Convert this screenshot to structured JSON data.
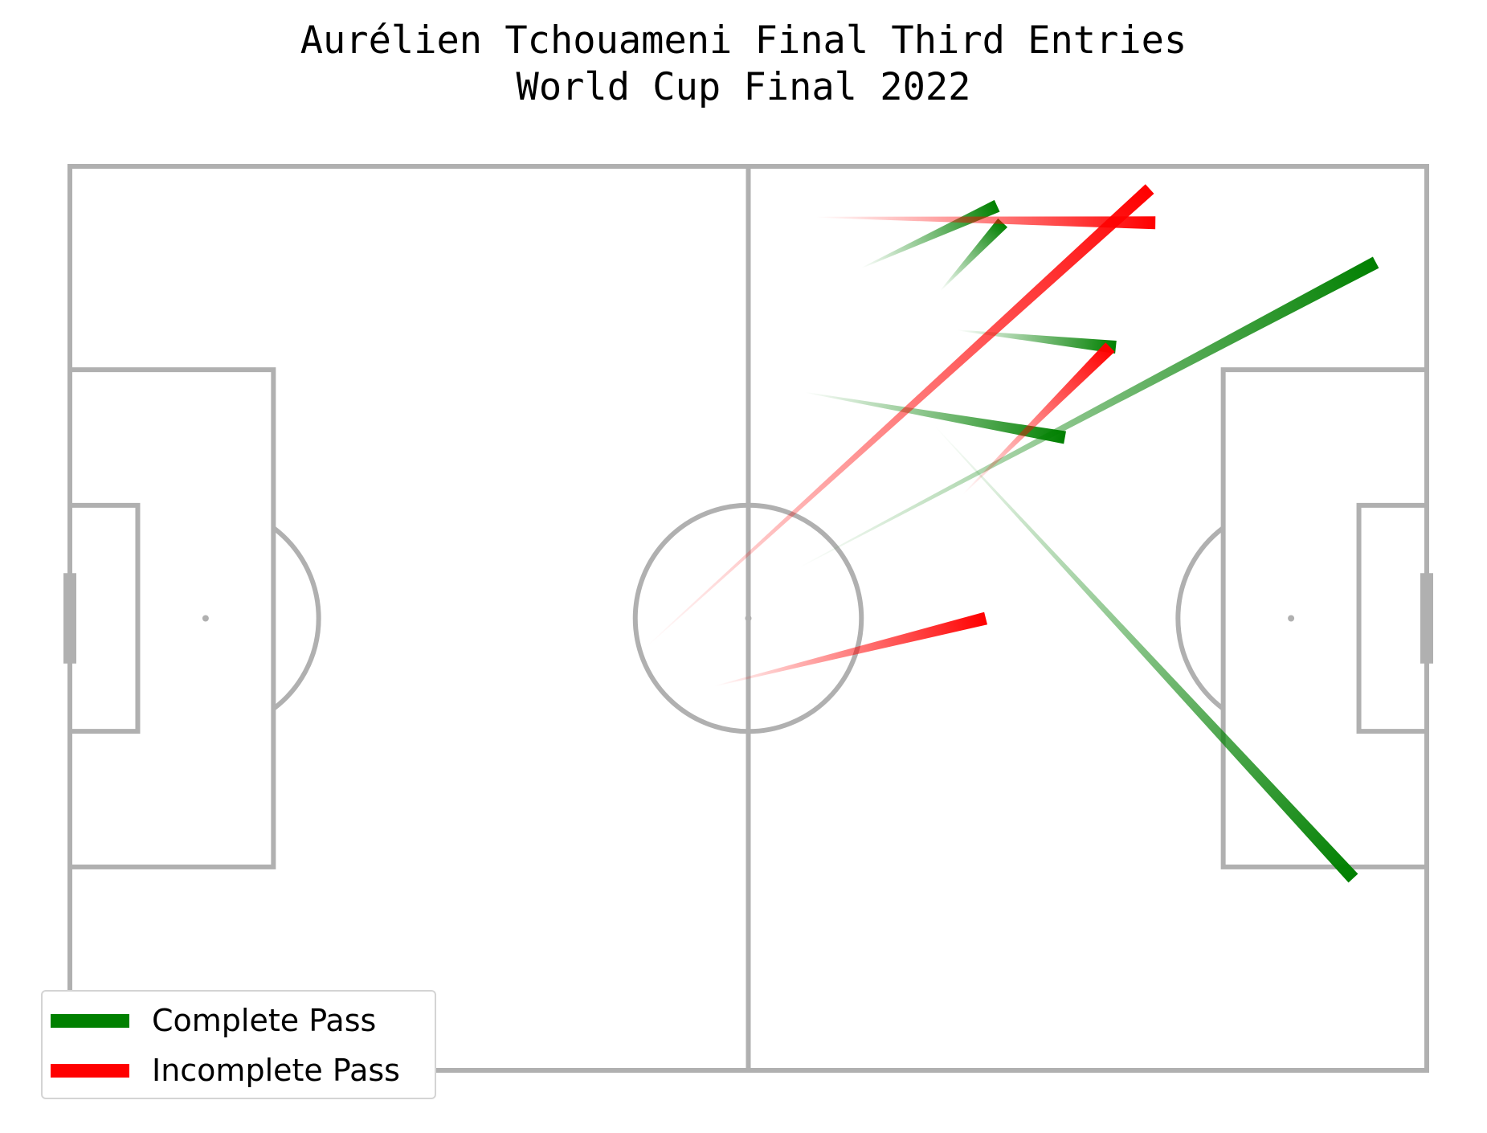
{
  "title_line1": "Aurélien Tchouameni Final Third Entries",
  "title_line2": "World Cup Final 2022",
  "colors": {
    "complete": "#008000",
    "incomplete": "#ff0000",
    "pitch_lines": "#b0b0b0"
  },
  "legend": [
    {
      "label": "Complete Pass",
      "color": "#008000"
    },
    {
      "label": "Incomplete Pass",
      "color": "#ff0000"
    }
  ],
  "chart_data": {
    "type": "scatter",
    "pitch": {
      "length": 120,
      "width": 80
    },
    "passes": [
      {
        "outcome": "complete",
        "start": [
          70,
          9
        ],
        "end": [
          82,
          3.5
        ]
      },
      {
        "outcome": "complete",
        "start": [
          77,
          11
        ],
        "end": [
          82.5,
          5
        ]
      },
      {
        "outcome": "complete",
        "start": [
          78.5,
          14.5
        ],
        "end": [
          92.5,
          16
        ]
      },
      {
        "outcome": "complete",
        "start": [
          65,
          20
        ],
        "end": [
          88,
          24
        ]
      },
      {
        "outcome": "complete",
        "start": [
          64.5,
          35.5
        ],
        "end": [
          115.5,
          8.5
        ]
      },
      {
        "outcome": "complete",
        "start": [
          76.5,
          23
        ],
        "end": [
          113.5,
          63
        ]
      },
      {
        "outcome": "incomplete",
        "start": [
          66,
          4.5
        ],
        "end": [
          96,
          5
        ]
      },
      {
        "outcome": "incomplete",
        "start": [
          51,
          42.5
        ],
        "end": [
          95.5,
          2
        ]
      },
      {
        "outcome": "incomplete",
        "start": [
          79,
          29
        ],
        "end": [
          92,
          16
        ]
      },
      {
        "outcome": "incomplete",
        "start": [
          57,
          46
        ],
        "end": [
          81,
          40
        ]
      }
    ]
  }
}
